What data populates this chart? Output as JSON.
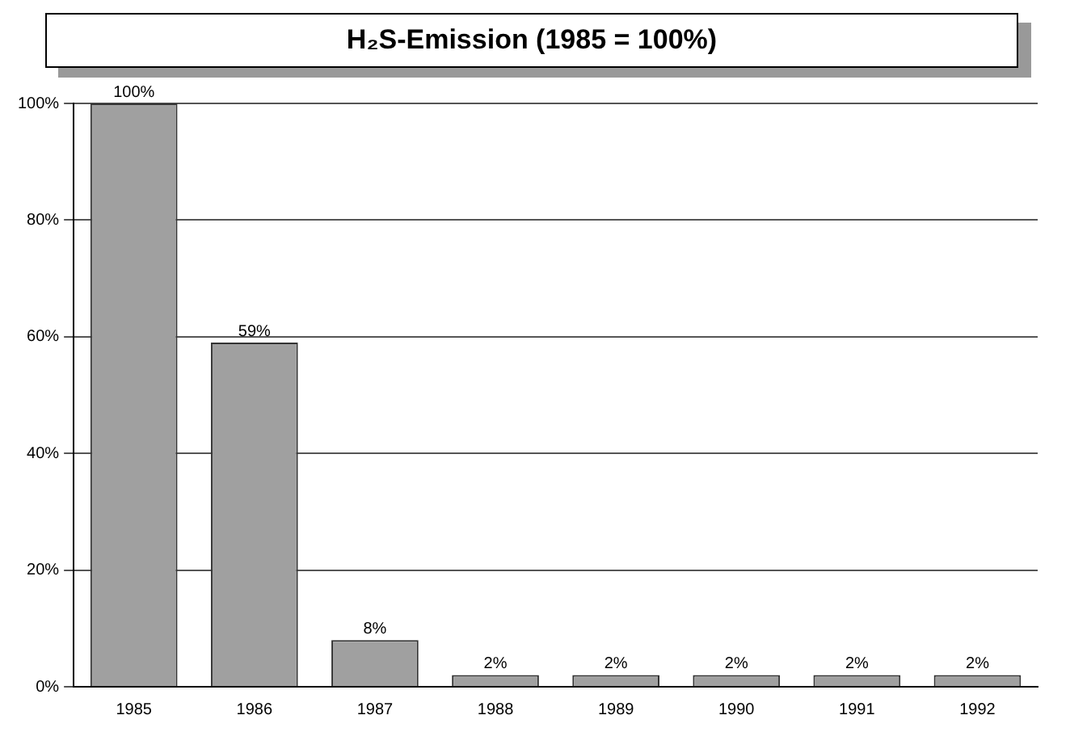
{
  "chart_data": {
    "type": "bar",
    "title": "H₂S-Emission (1985 = 100%)",
    "categories": [
      "1985",
      "1986",
      "1987",
      "1988",
      "1989",
      "1990",
      "1991",
      "1992"
    ],
    "values": [
      100,
      59,
      8,
      2,
      2,
      2,
      2,
      2
    ],
    "value_labels": [
      "100%",
      "59%",
      "8%",
      "2%",
      "2%",
      "2%",
      "2%",
      "2%"
    ],
    "color": "#a0a0a0",
    "ylim": [
      0,
      100
    ],
    "yticks": [
      {
        "value": 0,
        "label": "0%"
      },
      {
        "value": 20,
        "label": "20%"
      },
      {
        "value": 40,
        "label": "40%"
      },
      {
        "value": 60,
        "label": "60%"
      },
      {
        "value": 80,
        "label": "80%"
      },
      {
        "value": 100,
        "label": "100%"
      }
    ],
    "grid": "y"
  }
}
